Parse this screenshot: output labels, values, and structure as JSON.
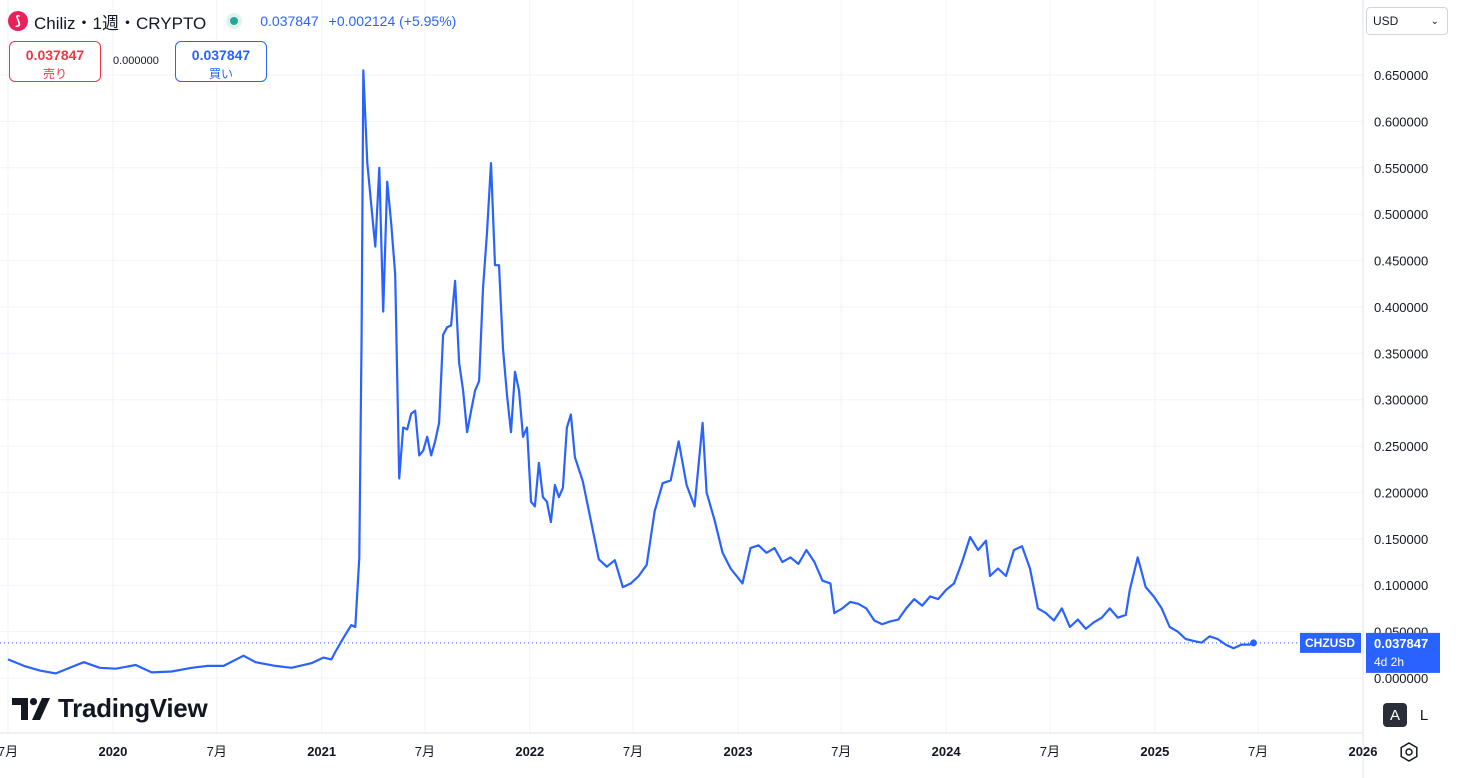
{
  "header": {
    "title": "Chiliz・1週・CRYPTO",
    "logo_letter": "⟆",
    "price": "0.037847",
    "change": "+0.002124 (+5.95%)"
  },
  "sell": {
    "value": "0.037847",
    "label": "売り"
  },
  "buy": {
    "value": "0.037847",
    "label": "買い"
  },
  "spread": "0.000000",
  "currency": "USD",
  "watermark": "TradingView",
  "controls": {
    "auto": "A",
    "log": "L"
  },
  "colors": {
    "line": "#2962ff",
    "sell": "#f23645",
    "buy": "#2962ff",
    "status": "#22ab94"
  },
  "chart_data": {
    "type": "line",
    "series": [
      {
        "name": "CHZUSD",
        "points": [
          [
            "2019-07-01",
            0.02
          ],
          [
            "2019-07-29",
            0.013
          ],
          [
            "2019-08-26",
            0.008
          ],
          [
            "2019-09-23",
            0.005
          ],
          [
            "2019-10-21",
            0.012
          ],
          [
            "2019-11-11",
            0.017
          ],
          [
            "2019-12-09",
            0.011
          ],
          [
            "2020-01-06",
            0.01
          ],
          [
            "2020-02-10",
            0.014
          ],
          [
            "2020-03-09",
            0.006
          ],
          [
            "2020-04-13",
            0.007
          ],
          [
            "2020-05-18",
            0.011
          ],
          [
            "2020-06-15",
            0.013
          ],
          [
            "2020-07-13",
            0.013
          ],
          [
            "2020-08-17",
            0.024
          ],
          [
            "2020-09-07",
            0.017
          ],
          [
            "2020-10-12",
            0.013
          ],
          [
            "2020-11-09",
            0.011
          ],
          [
            "2020-12-14",
            0.016
          ],
          [
            "2021-01-04",
            0.022
          ],
          [
            "2021-01-18",
            0.02
          ],
          [
            "2021-01-25",
            0.028
          ],
          [
            "2021-02-08",
            0.043
          ],
          [
            "2021-02-22",
            0.057
          ],
          [
            "2021-03-01",
            0.055
          ],
          [
            "2021-03-08",
            0.13
          ],
          [
            "2021-03-12",
            0.37
          ],
          [
            "2021-03-15",
            0.655
          ],
          [
            "2021-03-22",
            0.555
          ],
          [
            "2021-04-01",
            0.49
          ],
          [
            "2021-04-05",
            0.465
          ],
          [
            "2021-04-12",
            0.55
          ],
          [
            "2021-04-19",
            0.395
          ],
          [
            "2021-04-26",
            0.535
          ],
          [
            "2021-05-03",
            0.49
          ],
          [
            "2021-05-10",
            0.435
          ],
          [
            "2021-05-17",
            0.215
          ],
          [
            "2021-05-24",
            0.27
          ],
          [
            "2021-05-31",
            0.268
          ],
          [
            "2021-06-07",
            0.285
          ],
          [
            "2021-06-14",
            0.288
          ],
          [
            "2021-06-21",
            0.24
          ],
          [
            "2021-06-28",
            0.245
          ],
          [
            "2021-07-05",
            0.26
          ],
          [
            "2021-07-12",
            0.24
          ],
          [
            "2021-07-19",
            0.255
          ],
          [
            "2021-07-26",
            0.275
          ],
          [
            "2021-08-02",
            0.37
          ],
          [
            "2021-08-09",
            0.378
          ],
          [
            "2021-08-16",
            0.38
          ],
          [
            "2021-08-23",
            0.428
          ],
          [
            "2021-08-30",
            0.34
          ],
          [
            "2021-09-06",
            0.31
          ],
          [
            "2021-09-13",
            0.265
          ],
          [
            "2021-09-20",
            0.288
          ],
          [
            "2021-09-27",
            0.31
          ],
          [
            "2021-10-04",
            0.32
          ],
          [
            "2021-10-11",
            0.42
          ],
          [
            "2021-10-18",
            0.48
          ],
          [
            "2021-10-25",
            0.555
          ],
          [
            "2021-11-01",
            0.445
          ],
          [
            "2021-11-08",
            0.445
          ],
          [
            "2021-11-15",
            0.355
          ],
          [
            "2021-11-22",
            0.305
          ],
          [
            "2021-11-29",
            0.265
          ],
          [
            "2021-12-06",
            0.33
          ],
          [
            "2021-12-13",
            0.31
          ],
          [
            "2021-12-20",
            0.26
          ],
          [
            "2021-12-27",
            0.27
          ],
          [
            "2022-01-03",
            0.19
          ],
          [
            "2022-01-10",
            0.185
          ],
          [
            "2022-01-17",
            0.232
          ],
          [
            "2022-01-24",
            0.195
          ],
          [
            "2022-01-31",
            0.19
          ],
          [
            "2022-02-07",
            0.168
          ],
          [
            "2022-02-14",
            0.208
          ],
          [
            "2022-02-21",
            0.195
          ],
          [
            "2022-02-28",
            0.205
          ],
          [
            "2022-03-07",
            0.27
          ],
          [
            "2022-03-14",
            0.284
          ],
          [
            "2022-03-21",
            0.238
          ],
          [
            "2022-04-04",
            0.212
          ],
          [
            "2022-04-18",
            0.17
          ],
          [
            "2022-05-02",
            0.128
          ],
          [
            "2022-05-16",
            0.12
          ],
          [
            "2022-05-30",
            0.127
          ],
          [
            "2022-06-13",
            0.098
          ],
          [
            "2022-06-27",
            0.102
          ],
          [
            "2022-07-11",
            0.11
          ],
          [
            "2022-07-25",
            0.122
          ],
          [
            "2022-08-08",
            0.18
          ],
          [
            "2022-08-22",
            0.21
          ],
          [
            "2022-09-05",
            0.213
          ],
          [
            "2022-09-19",
            0.255
          ],
          [
            "2022-10-03",
            0.208
          ],
          [
            "2022-10-17",
            0.185
          ],
          [
            "2022-10-31",
            0.275
          ],
          [
            "2022-11-07",
            0.2
          ],
          [
            "2022-11-21",
            0.17
          ],
          [
            "2022-12-05",
            0.135
          ],
          [
            "2022-12-19",
            0.118
          ],
          [
            "2023-01-09",
            0.102
          ],
          [
            "2023-01-23",
            0.14
          ],
          [
            "2023-02-06",
            0.143
          ],
          [
            "2023-02-20",
            0.135
          ],
          [
            "2023-03-06",
            0.14
          ],
          [
            "2023-03-20",
            0.125
          ],
          [
            "2023-04-03",
            0.13
          ],
          [
            "2023-04-17",
            0.123
          ],
          [
            "2023-05-01",
            0.138
          ],
          [
            "2023-05-15",
            0.125
          ],
          [
            "2023-05-29",
            0.105
          ],
          [
            "2023-06-12",
            0.102
          ],
          [
            "2023-06-19",
            0.07
          ],
          [
            "2023-07-03",
            0.075
          ],
          [
            "2023-07-17",
            0.082
          ],
          [
            "2023-07-31",
            0.08
          ],
          [
            "2023-08-14",
            0.075
          ],
          [
            "2023-08-28",
            0.062
          ],
          [
            "2023-09-11",
            0.058
          ],
          [
            "2023-09-25",
            0.061
          ],
          [
            "2023-10-09",
            0.063
          ],
          [
            "2023-10-23",
            0.075
          ],
          [
            "2023-11-06",
            0.085
          ],
          [
            "2023-11-20",
            0.078
          ],
          [
            "2023-12-04",
            0.088
          ],
          [
            "2023-12-18",
            0.085
          ],
          [
            "2024-01-01",
            0.095
          ],
          [
            "2024-01-15",
            0.102
          ],
          [
            "2024-01-29",
            0.125
          ],
          [
            "2024-02-12",
            0.152
          ],
          [
            "2024-02-26",
            0.138
          ],
          [
            "2024-03-11",
            0.148
          ],
          [
            "2024-03-18",
            0.11
          ],
          [
            "2024-04-01",
            0.118
          ],
          [
            "2024-04-15",
            0.11
          ],
          [
            "2024-04-29",
            0.138
          ],
          [
            "2024-05-13",
            0.142
          ],
          [
            "2024-05-27",
            0.118
          ],
          [
            "2024-06-10",
            0.075
          ],
          [
            "2024-06-24",
            0.07
          ],
          [
            "2024-07-08",
            0.062
          ],
          [
            "2024-07-22",
            0.075
          ],
          [
            "2024-08-05",
            0.055
          ],
          [
            "2024-08-19",
            0.063
          ],
          [
            "2024-09-02",
            0.053
          ],
          [
            "2024-09-16",
            0.06
          ],
          [
            "2024-09-30",
            0.065
          ],
          [
            "2024-10-14",
            0.075
          ],
          [
            "2024-10-28",
            0.065
          ],
          [
            "2024-11-11",
            0.068
          ],
          [
            "2024-11-18",
            0.095
          ],
          [
            "2024-12-02",
            0.13
          ],
          [
            "2024-12-16",
            0.098
          ],
          [
            "2024-12-30",
            0.088
          ],
          [
            "2025-01-13",
            0.075
          ],
          [
            "2025-01-27",
            0.055
          ],
          [
            "2025-02-10",
            0.05
          ],
          [
            "2025-02-24",
            0.042
          ],
          [
            "2025-03-10",
            0.04
          ],
          [
            "2025-03-24",
            0.038
          ],
          [
            "2025-04-07",
            0.045
          ],
          [
            "2025-04-21",
            0.042
          ],
          [
            "2025-05-05",
            0.036
          ],
          [
            "2025-05-19",
            0.032
          ],
          [
            "2025-06-02",
            0.036
          ],
          [
            "2025-06-16",
            0.036
          ],
          [
            "2025-06-23",
            0.0378
          ]
        ]
      }
    ],
    "xlim": [
      "2019-07-01",
      "2026-01-01"
    ],
    "ylim": [
      0.0,
      0.65
    ],
    "y_ticks": [
      "0.000000",
      "0.050000",
      "0.100000",
      "0.150000",
      "0.200000",
      "0.250000",
      "0.300000",
      "0.350000",
      "0.400000",
      "0.450000",
      "0.500000",
      "0.550000",
      "0.600000",
      "0.650000"
    ],
    "x_ticks": [
      {
        "date": "2019-07-01",
        "label": "7月",
        "bold": false
      },
      {
        "date": "2020-01-01",
        "label": "2020",
        "bold": true
      },
      {
        "date": "2020-07-01",
        "label": "7月",
        "bold": false
      },
      {
        "date": "2021-01-01",
        "label": "2021",
        "bold": true
      },
      {
        "date": "2021-07-01",
        "label": "7月",
        "bold": false
      },
      {
        "date": "2022-01-01",
        "label": "2022",
        "bold": true
      },
      {
        "date": "2022-07-01",
        "label": "7月",
        "bold": false
      },
      {
        "date": "2023-01-01",
        "label": "2023",
        "bold": true
      },
      {
        "date": "2023-07-01",
        "label": "7月",
        "bold": false
      },
      {
        "date": "2024-01-01",
        "label": "2024",
        "bold": true
      },
      {
        "date": "2024-07-01",
        "label": "7月",
        "bold": false
      },
      {
        "date": "2025-01-01",
        "label": "2025",
        "bold": true
      },
      {
        "date": "2025-07-01",
        "label": "7月",
        "bold": false
      },
      {
        "date": "2026-01-01",
        "label": "2026",
        "bold": true
      }
    ],
    "last_price": 0.037847,
    "price_label": "0.037847",
    "countdown": "4d 2h",
    "symbol_label": "CHZUSD",
    "grid": true
  }
}
